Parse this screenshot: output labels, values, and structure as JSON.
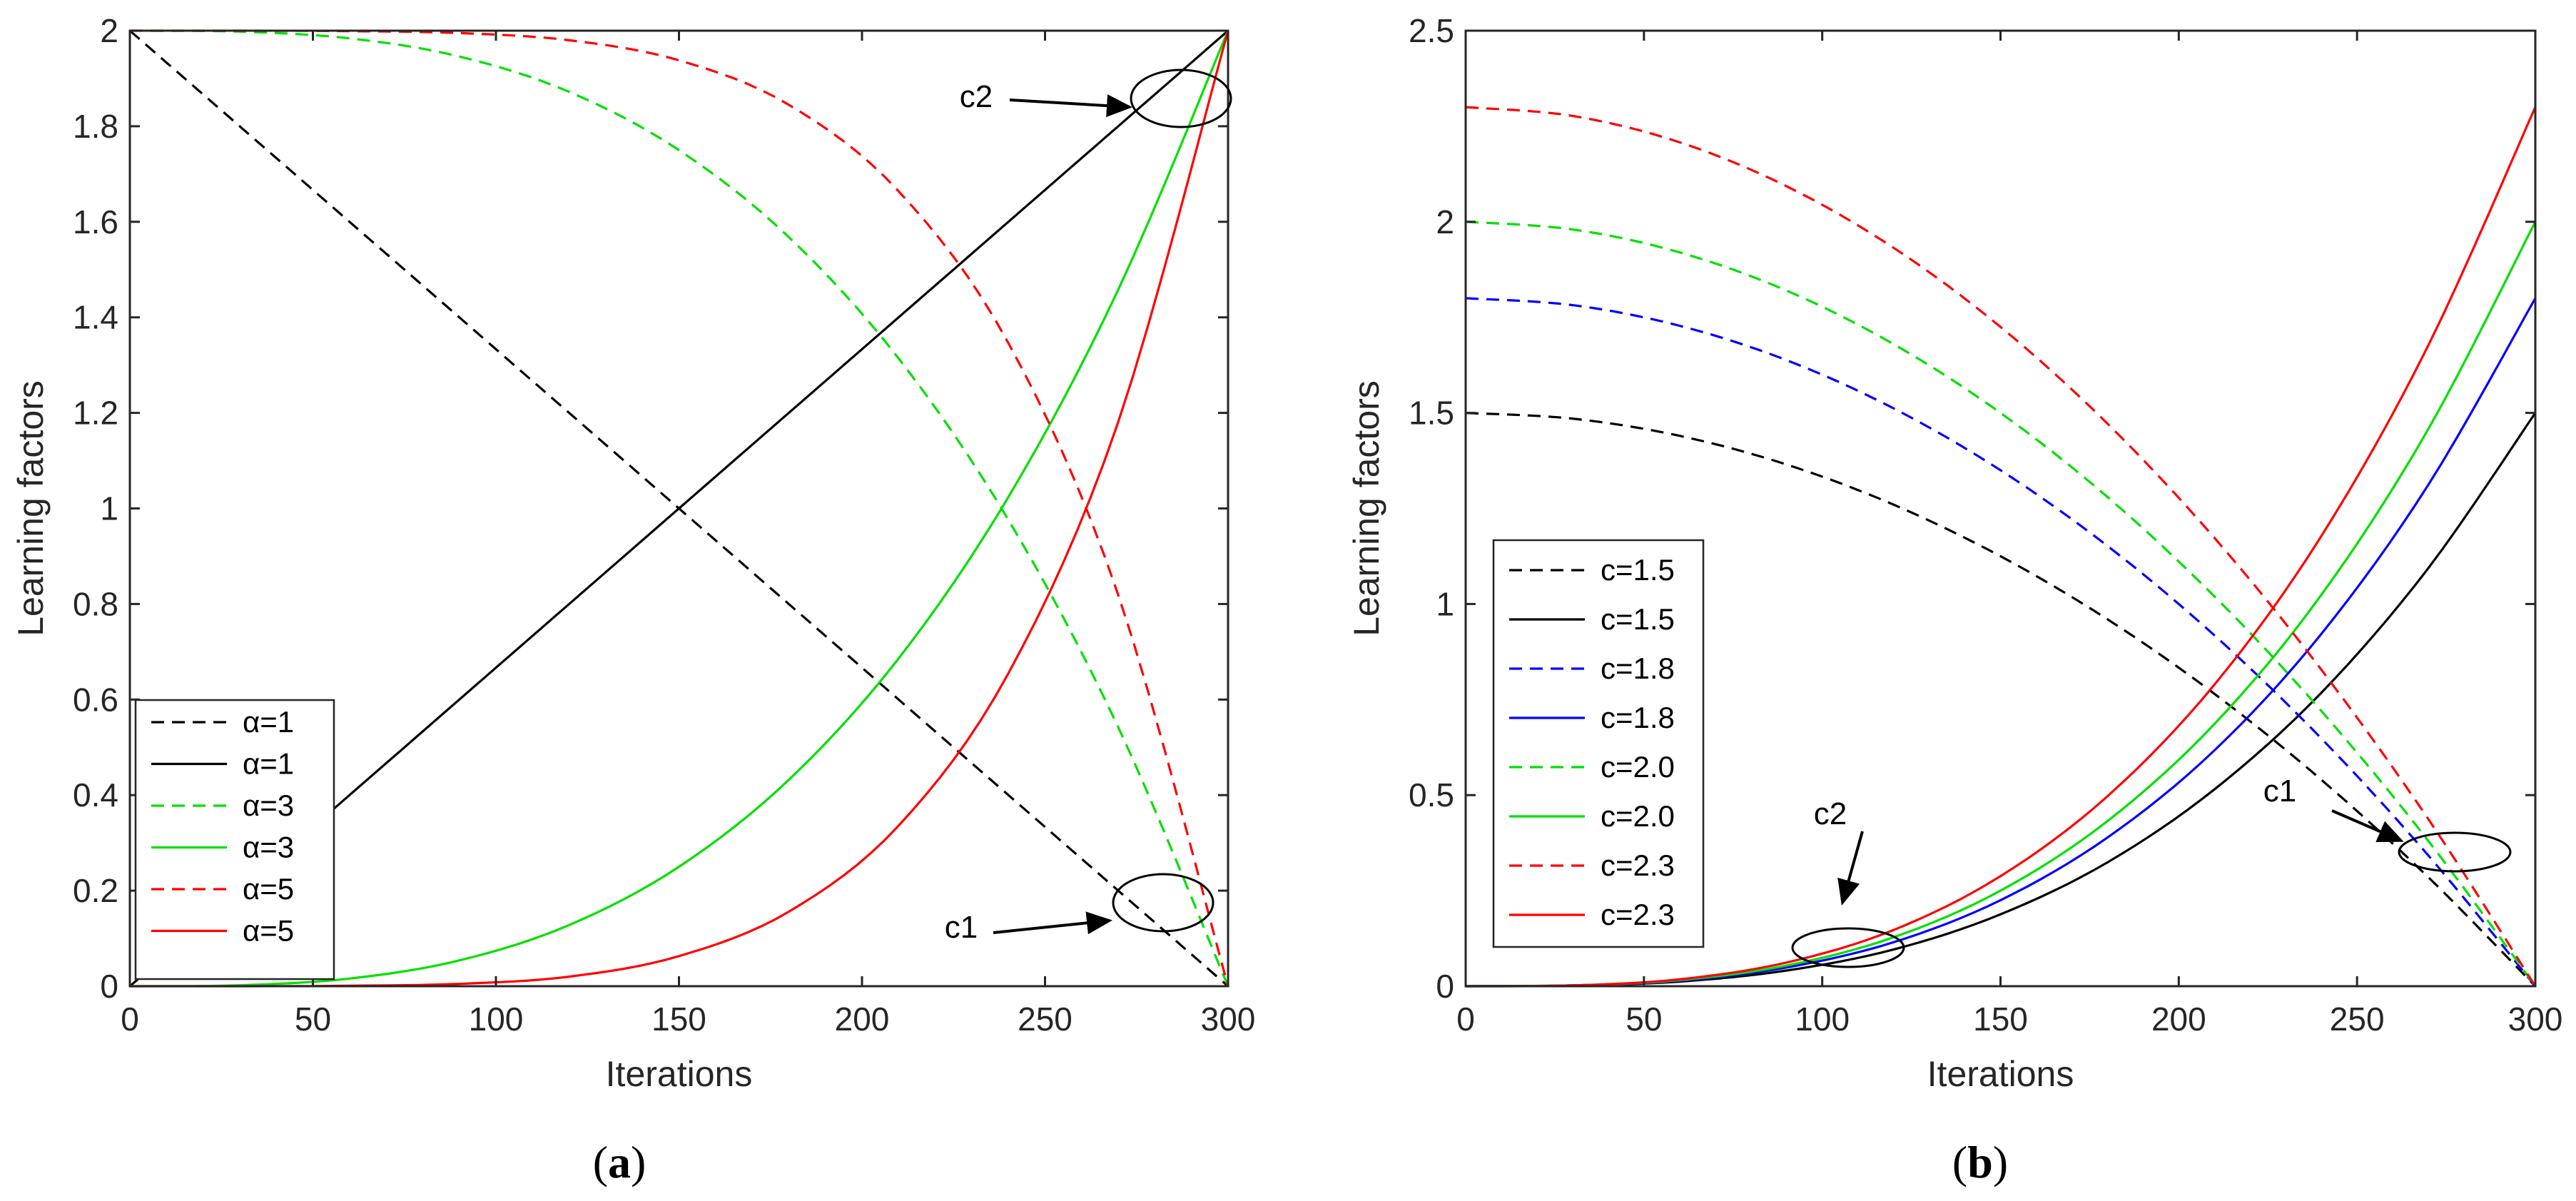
{
  "chart_data": [
    {
      "type": "line",
      "panel": "a",
      "caption_open": "(",
      "caption_letter": "a",
      "caption_close": ")",
      "xlabel": "Iterations",
      "ylabel": "Learning factors",
      "xlim": [
        0,
        300
      ],
      "ylim": [
        0,
        2
      ],
      "xticks": [
        0,
        50,
        100,
        150,
        200,
        250,
        300
      ],
      "xtick_labels": [
        "0",
        "50",
        "100",
        "150",
        "200",
        "250",
        "300"
      ],
      "yticks": [
        0,
        0.2,
        0.4,
        0.6,
        0.8,
        1,
        1.2,
        1.4,
        1.6,
        1.8,
        2
      ],
      "ytick_labels": [
        "0",
        "0.2",
        "0.4",
        "0.6",
        "0.8",
        "1",
        "1.2",
        "1.4",
        "1.6",
        "1.8",
        "2"
      ],
      "legend_position": "bottom-left",
      "series": [
        {
          "name": "α=1",
          "color": "#000000",
          "dash": true,
          "x": [
            0,
            30,
            60,
            90,
            120,
            150,
            180,
            210,
            240,
            270,
            300
          ],
          "y": [
            2.0,
            1.8,
            1.6,
            1.4,
            1.2,
            1.0,
            0.8,
            0.6,
            0.4,
            0.2,
            0.0
          ]
        },
        {
          "name": "α=1",
          "color": "#000000",
          "dash": false,
          "x": [
            0,
            30,
            60,
            90,
            120,
            150,
            180,
            210,
            240,
            270,
            300
          ],
          "y": [
            0.0,
            0.2,
            0.4,
            0.6,
            0.8,
            1.0,
            1.2,
            1.4,
            1.6,
            1.8,
            2.0
          ]
        },
        {
          "name": "α=3",
          "color": "#00e000",
          "dash": true,
          "x": [
            0,
            30,
            60,
            90,
            120,
            150,
            180,
            210,
            240,
            270,
            300
          ],
          "y": [
            2.0,
            1.998,
            1.984,
            1.946,
            1.872,
            1.75,
            1.568,
            1.314,
            0.976,
            0.542,
            0.0
          ]
        },
        {
          "name": "α=3",
          "color": "#00e000",
          "dash": false,
          "x": [
            0,
            30,
            60,
            90,
            120,
            150,
            180,
            210,
            240,
            270,
            300
          ],
          "y": [
            0.0,
            0.002,
            0.016,
            0.054,
            0.128,
            0.25,
            0.432,
            0.686,
            1.024,
            1.458,
            2.0
          ]
        },
        {
          "name": "α=5",
          "color": "#ff0000",
          "dash": true,
          "x": [
            0,
            30,
            60,
            90,
            120,
            150,
            180,
            210,
            240,
            270,
            300
          ],
          "y": [
            2.0,
            2.0,
            1.999,
            1.995,
            1.98,
            1.938,
            1.845,
            1.664,
            1.346,
            0.819,
            0.0
          ]
        },
        {
          "name": "α=5",
          "color": "#ff0000",
          "dash": false,
          "x": [
            0,
            30,
            60,
            90,
            120,
            150,
            180,
            210,
            240,
            270,
            300
          ],
          "y": [
            0.0,
            0.0,
            0.001,
            0.005,
            0.02,
            0.063,
            0.156,
            0.336,
            0.655,
            1.181,
            2.0
          ]
        }
      ],
      "annotations": [
        {
          "label": "c2",
          "x": 285,
          "y": 1.86
        },
        {
          "label": "c1",
          "x": 283,
          "y": 0.18
        }
      ]
    },
    {
      "type": "line",
      "panel": "b",
      "caption_open": "(",
      "caption_letter": "b",
      "caption_close": ")",
      "xlabel": "Iterations",
      "ylabel": "Learning factors",
      "xlim": [
        0,
        300
      ],
      "ylim": [
        0,
        2.5
      ],
      "xticks": [
        0,
        50,
        100,
        150,
        200,
        250,
        300
      ],
      "xtick_labels": [
        "0",
        "50",
        "100",
        "150",
        "200",
        "250",
        "300"
      ],
      "yticks": [
        0,
        0.5,
        1,
        1.5,
        2,
        2.5
      ],
      "ytick_labels": [
        "0",
        "0.5",
        "1",
        "1.5",
        "2",
        "2.5"
      ],
      "legend_position": "middle-left",
      "series": [
        {
          "name": "c=1.5",
          "color": "#000000",
          "dash": true,
          "x": [
            0,
            30,
            60,
            90,
            120,
            150,
            180,
            210,
            240,
            270,
            300
          ],
          "y": [
            1.5,
            1.485,
            1.44,
            1.365,
            1.26,
            1.125,
            0.96,
            0.765,
            0.54,
            0.285,
            0.0
          ]
        },
        {
          "name": "c=1.5",
          "color": "#000000",
          "dash": false,
          "x": [
            0,
            30,
            60,
            90,
            120,
            150,
            180,
            210,
            240,
            270,
            300
          ],
          "y": [
            0.0,
            0.002,
            0.012,
            0.041,
            0.096,
            0.188,
            0.324,
            0.515,
            0.768,
            1.094,
            1.5
          ]
        },
        {
          "name": "c=1.8",
          "color": "#0000ff",
          "dash": true,
          "x": [
            0,
            30,
            60,
            90,
            120,
            150,
            180,
            210,
            240,
            270,
            300
          ],
          "y": [
            1.8,
            1.782,
            1.728,
            1.638,
            1.512,
            1.35,
            1.152,
            0.918,
            0.648,
            0.342,
            0.0
          ]
        },
        {
          "name": "c=1.8",
          "color": "#0000ff",
          "dash": false,
          "x": [
            0,
            30,
            60,
            90,
            120,
            150,
            180,
            210,
            240,
            270,
            300
          ],
          "y": [
            0.0,
            0.002,
            0.014,
            0.049,
            0.115,
            0.225,
            0.389,
            0.617,
            0.922,
            1.312,
            1.8
          ]
        },
        {
          "name": "c=2.0",
          "color": "#00e000",
          "dash": true,
          "x": [
            0,
            30,
            60,
            90,
            120,
            150,
            180,
            210,
            240,
            270,
            300
          ],
          "y": [
            2.0,
            1.98,
            1.92,
            1.82,
            1.68,
            1.5,
            1.28,
            1.02,
            0.72,
            0.38,
            0.0
          ]
        },
        {
          "name": "c=2.0",
          "color": "#00e000",
          "dash": false,
          "x": [
            0,
            30,
            60,
            90,
            120,
            150,
            180,
            210,
            240,
            270,
            300
          ],
          "y": [
            0.0,
            0.002,
            0.016,
            0.054,
            0.128,
            0.25,
            0.432,
            0.686,
            1.024,
            1.458,
            2.0
          ]
        },
        {
          "name": "c=2.3",
          "color": "#ff0000",
          "dash": true,
          "x": [
            0,
            30,
            60,
            90,
            120,
            150,
            180,
            210,
            240,
            270,
            300
          ],
          "y": [
            2.3,
            2.277,
            2.208,
            2.093,
            1.932,
            1.725,
            1.472,
            1.173,
            0.828,
            0.437,
            0.0
          ]
        },
        {
          "name": "c=2.3",
          "color": "#ff0000",
          "dash": false,
          "x": [
            0,
            30,
            60,
            90,
            120,
            150,
            180,
            210,
            240,
            270,
            300
          ],
          "y": [
            0.0,
            0.002,
            0.018,
            0.062,
            0.147,
            0.288,
            0.497,
            0.789,
            1.178,
            1.677,
            2.3
          ]
        }
      ],
      "annotations": [
        {
          "label": "c2",
          "x": 108,
          "y": 0.08
        },
        {
          "label": "c1",
          "x": 278,
          "y": 0.35
        }
      ]
    }
  ]
}
